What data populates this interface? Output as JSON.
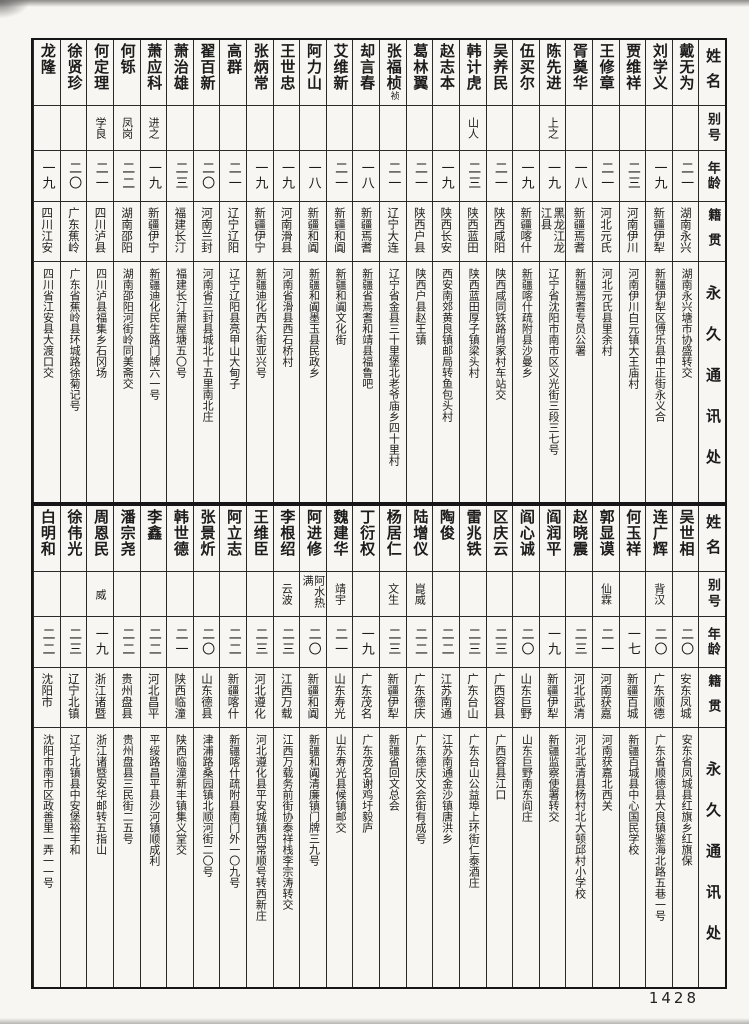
{
  "colors": {
    "ink": "#1c1c1c",
    "paper": "#f7f6f2",
    "line": "#2a2a2a"
  },
  "page": {
    "number": "1428"
  },
  "headers": {
    "name": "姓名",
    "alias": "别号",
    "age": "年龄",
    "native": "籍贯",
    "address": "永久通讯处"
  },
  "tables": [
    {
      "people": [
        {
          "name": "戴无为",
          "note": "",
          "alias": "",
          "age": "二一",
          "native": "湖南永兴",
          "address": "湖南永兴塘市协盛转交"
        },
        {
          "name": "刘学义",
          "note": "",
          "alias": "",
          "age": "一九",
          "native": "新疆伊犁",
          "address": "新疆伊犁区傅乐县中正街永义合"
        },
        {
          "name": "贾维祥",
          "note": "",
          "alias": "",
          "age": "二三",
          "native": "河南伊川",
          "address": "河南伊川白元镇大王庙村"
        },
        {
          "name": "王修章",
          "note": "",
          "alias": "",
          "age": "二一",
          "native": "河北元氏",
          "address": "河北元氏县里余村"
        },
        {
          "name": "胥奠华",
          "note": "",
          "alias": "",
          "age": "一八",
          "native": "新疆焉耆",
          "address": "新疆焉耆专员公署"
        },
        {
          "name": "陈先进",
          "note": "",
          "alias": "上之",
          "age": "一九",
          "native": "黑龙江龙江县",
          "address": "辽宁省沈阳市南市区义光街三段三七号"
        },
        {
          "name": "伍买尔",
          "note": "",
          "alias": "",
          "age": "一九",
          "native": "新疆喀什",
          "address": "新疆喀什疏附县沙曼乡"
        },
        {
          "name": "吴养民",
          "note": "",
          "alias": "",
          "age": "二一",
          "native": "陕西咸阳",
          "address": "陕西咸同铁路肖家村车站交"
        },
        {
          "name": "韩计虎",
          "note": "",
          "alias": "山人",
          "age": "二三",
          "native": "陕西蓝田",
          "address": "陕西蓝田厚子镇梁头村"
        },
        {
          "name": "赵志本",
          "note": "",
          "alias": "",
          "age": "一九",
          "native": "陕西长安",
          "address": "西安南郊黄良镇邮局转鱼包头村"
        },
        {
          "name": "葛林翼",
          "note": "",
          "alias": "",
          "age": "二一",
          "native": "陕西户县",
          "address": "陕西户县赵王镇"
        },
        {
          "name": "张福桢",
          "note": "祯",
          "alias": "",
          "age": "二一",
          "native": "辽宁大连",
          "address": "辽宁省金县三十里堡北老爷庙乡四十里村"
        },
        {
          "name": "却言春",
          "note": "",
          "alias": "",
          "age": "一八",
          "native": "新疆焉耆",
          "address": "新疆省焉耆和靖县福鲁吧"
        },
        {
          "name": "艾维新",
          "note": "",
          "alias": "",
          "age": "二一",
          "native": "新疆和阗",
          "address": "新疆和阗文化街"
        },
        {
          "name": "阿力山",
          "note": "",
          "alias": "",
          "age": "一八",
          "native": "新疆和阗",
          "address": "新疆和阗墨玉县民政乡"
        },
        {
          "name": "王世忠",
          "note": "",
          "alias": "",
          "age": "一九",
          "native": "河南滑县",
          "address": "河南省滑县西石桥村"
        },
        {
          "name": "张炳常",
          "note": "",
          "alias": "",
          "age": "一九",
          "native": "新疆伊宁",
          "address": "新疆迪化西大街亚兴号"
        },
        {
          "name": "高群",
          "note": "",
          "alias": "",
          "age": "二一",
          "native": "辽宁辽阳",
          "address": "辽宁辽阳县亮甲山大甸子"
        },
        {
          "name": "翟百新",
          "note": "",
          "alias": "",
          "age": "二〇",
          "native": "河南兰封",
          "address": "河南省兰封县城北十五里南北庄"
        },
        {
          "name": "萧治雄",
          "note": "",
          "alias": "",
          "age": "二三",
          "native": "福建长汀",
          "address": "福建长汀萧屋塘五〇号"
        },
        {
          "name": "萧应科",
          "note": "",
          "alias": "进之",
          "age": "一九",
          "native": "新疆伊宁",
          "address": "新疆迪化民生路门牌六一号"
        },
        {
          "name": "何铄",
          "note": "",
          "alias": "凤岗",
          "age": "二二",
          "native": "湖南邵阳",
          "address": "湖南邵阳河街岭同美斋交"
        },
        {
          "name": "何定理",
          "note": "",
          "alias": "学良",
          "age": "二一",
          "native": "四川泸县",
          "address": "四川泸县福集乡石冈场"
        },
        {
          "name": "徐贤珍",
          "note": "",
          "alias": "",
          "age": "二〇",
          "native": "广东蕉岭",
          "address": "广东省蕉岭县环城路徐菊记号"
        },
        {
          "name": "龙隆",
          "note": "",
          "alias": "",
          "age": "一九",
          "native": "四川江安",
          "address": "四川省江安县大渡口交"
        }
      ]
    },
    {
      "people": [
        {
          "name": "吴世相",
          "note": "",
          "alias": "",
          "age": "二〇",
          "native": "安东凤城",
          "address": "安东省凤城县红旗乡红旗保"
        },
        {
          "name": "连广辉",
          "note": "",
          "alias": "背汉",
          "age": "二〇",
          "native": "广东顺德",
          "address": "广东省顺德县大良镇鉴海北路五巷一号"
        },
        {
          "name": "何玉祥",
          "note": "",
          "alias": "",
          "age": "一七",
          "native": "新疆百城",
          "address": "新疆百城县中心国民学校"
        },
        {
          "name": "郭显谟",
          "note": "",
          "alias": "仙霖",
          "age": "二一",
          "native": "河南获嘉",
          "address": "河南获嘉北西关"
        },
        {
          "name": "赵晓震",
          "note": "",
          "alias": "",
          "age": "二三",
          "native": "河北武清",
          "address": "河北武清县杨村北大顿邱村小学校"
        },
        {
          "name": "阎润平",
          "note": "",
          "alias": "",
          "age": "一九",
          "native": "新疆伊犁",
          "address": "新疆监察使署转交"
        },
        {
          "name": "阎心诚",
          "note": "",
          "alias": "",
          "age": "二〇",
          "native": "山东巨野",
          "address": "山东巨野南东阎庄"
        },
        {
          "name": "区庆云",
          "note": "",
          "alias": "",
          "age": "二三",
          "native": "广西容县",
          "address": "广西容县江口"
        },
        {
          "name": "雷兆铁",
          "note": "",
          "alias": "",
          "age": "二三",
          "native": "广东台山",
          "address": "广东台山公益埠上环街仁泰酒庄"
        },
        {
          "name": "陶俊",
          "note": "",
          "alias": "",
          "age": "二二",
          "native": "江苏南通",
          "address": "江苏南通金沙镇唐洪乡"
        },
        {
          "name": "陆增仪",
          "note": "",
          "alias": "崑威",
          "age": "二二",
          "native": "广东德庆",
          "address": "广东德庆文会街有成号"
        },
        {
          "name": "杨居仁",
          "note": "",
          "alias": "文生",
          "age": "二三",
          "native": "新疆伊犁",
          "address": "新疆省回文总会"
        },
        {
          "name": "丁衍权",
          "note": "",
          "alias": "",
          "age": "一九",
          "native": "广东茂名",
          "address": "广东茂名谢鸡圩毅庐"
        },
        {
          "name": "魏建华",
          "note": "",
          "alias": "靖宇",
          "age": "二一",
          "native": "山东寿光",
          "address": "山东寿光县候镇邮交"
        },
        {
          "name": "阿进修",
          "note": "",
          "alias": "阿水热满",
          "age": "二〇",
          "native": "新疆和阗",
          "address": "新疆和阗清廉镇门牌三九号"
        },
        {
          "name": "李根绍",
          "note": "",
          "alias": "云波",
          "age": "二三",
          "native": "江西万载",
          "address": "江西万载务前街协泰祥栈李宗涛转交"
        },
        {
          "name": "王维臣",
          "note": "",
          "alias": "",
          "age": "二三",
          "native": "河北遵化",
          "address": "河北遵化县平安城镇西常顺号转西新庄"
        },
        {
          "name": "阿立志",
          "note": "",
          "alias": "",
          "age": "二二",
          "native": "新疆喀什",
          "address": "新疆喀什疏附县南门外一〇九号"
        },
        {
          "name": "张景炘",
          "note": "",
          "alias": "",
          "age": "二〇",
          "native": "山东德县",
          "address": "津浦路桑园镇北顺河街二〇号"
        },
        {
          "name": "韩世德",
          "note": "",
          "alias": "",
          "age": "二一",
          "native": "陕西临潼",
          "address": "陕西临潼新丰镇集义堂交"
        },
        {
          "name": "李鑫",
          "note": "",
          "alias": "",
          "age": "二二",
          "native": "河北昌平",
          "address": "平绥路昌平县沙河镇顺成利"
        },
        {
          "name": "潘宗尧",
          "note": "",
          "alias": "",
          "age": "二二",
          "native": "贵州盘县",
          "address": "贵州盘县三民街二五号"
        },
        {
          "name": "周恩民",
          "note": "",
          "alias": "威",
          "age": "一九",
          "native": "浙江诸暨",
          "address": "浙江诸暨安华邮转五指山"
        },
        {
          "name": "徐伟光",
          "note": "",
          "alias": "",
          "age": "二三",
          "native": "辽宁北镇",
          "address": "辽宁北镇县中安堡裕丰和"
        },
        {
          "name": "白明和",
          "note": "",
          "alias": "",
          "age": "二二",
          "native": "沈阳市",
          "address": "沈阳市南市区政善里一弄一一号"
        }
      ]
    }
  ]
}
